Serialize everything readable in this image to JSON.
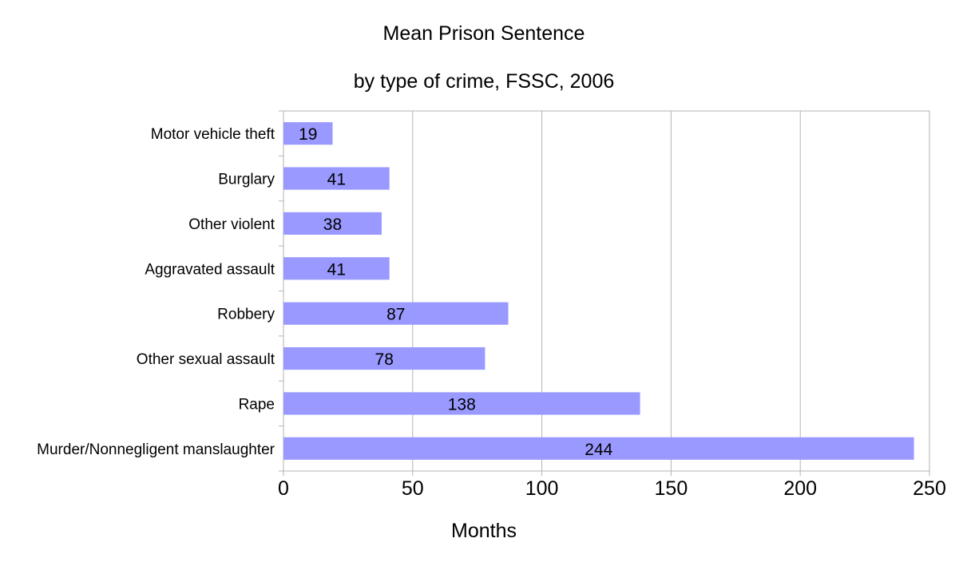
{
  "chart_data": {
    "type": "bar",
    "orientation": "horizontal",
    "title": "Mean Prison Sentence",
    "subtitle": "by type of crime, FSSC, 2006",
    "categories": [
      "Motor vehicle theft",
      "Burglary",
      "Other violent",
      "Aggravated assault",
      "Robbery",
      "Other sexual assault",
      "Rape",
      "Murder/Nonnegligent manslaughter"
    ],
    "values": [
      19,
      41,
      38,
      41,
      87,
      78,
      138,
      244
    ],
    "xlabel": "Months",
    "ylabel": "",
    "xlim": [
      0,
      250
    ],
    "xticks": [
      "0",
      "50",
      "100",
      "150",
      "200",
      "250"
    ],
    "grid": true,
    "legend": "none",
    "data_labels": [
      "19",
      "41",
      "38",
      "41",
      "87",
      "78",
      "138",
      "244"
    ],
    "colors": {
      "bar": "#9999ff",
      "grid": "#b3b3b3"
    }
  }
}
